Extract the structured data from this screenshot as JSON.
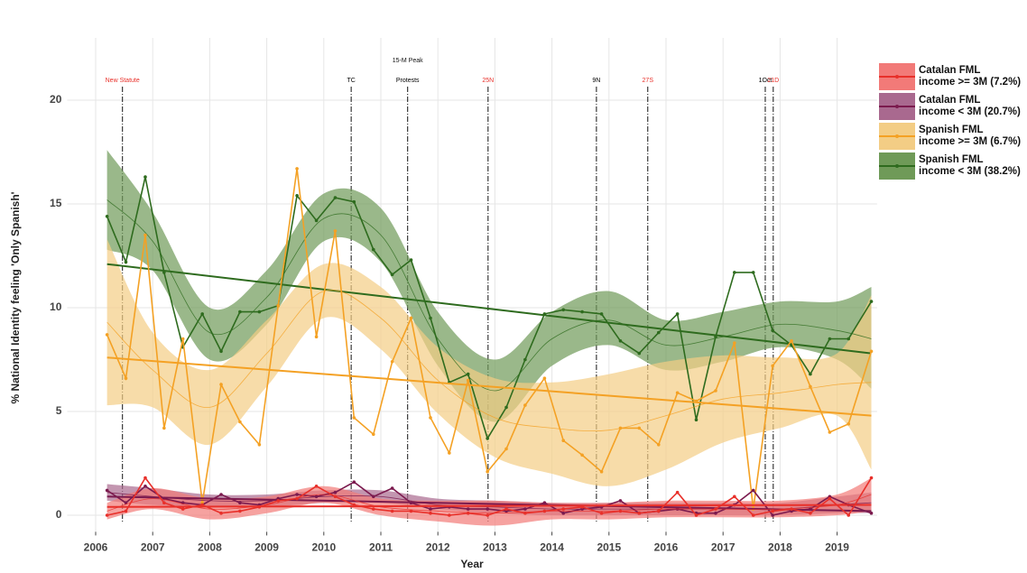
{
  "chart_data": {
    "type": "line",
    "xlabel": "Year",
    "ylabel": "% National Identity feeling 'Only Spanish'",
    "xlim": [
      2005.5,
      2019.7
    ],
    "ylim": [
      -0.8,
      23
    ],
    "xticks": [
      2006,
      2007,
      2008,
      2009,
      2010,
      2011,
      2012,
      2013,
      2014,
      2015,
      2016,
      2017,
      2018,
      2019
    ],
    "yticks": [
      0,
      5,
      10,
      15,
      20
    ],
    "grid": true,
    "legend": "right",
    "x": [
      2006.2,
      2006.53,
      2006.87,
      2007.2,
      2007.53,
      2007.87,
      2008.2,
      2008.53,
      2008.87,
      2009.2,
      2009.53,
      2009.87,
      2010.2,
      2010.53,
      2010.87,
      2011.2,
      2011.53,
      2011.87,
      2012.2,
      2012.53,
      2012.87,
      2013.2,
      2013.53,
      2013.87,
      2014.2,
      2014.53,
      2014.87,
      2015.2,
      2015.53,
      2015.87,
      2016.2,
      2016.53,
      2016.87,
      2017.2,
      2017.53,
      2017.87,
      2018.2,
      2018.53,
      2018.87,
      2019.2,
      2019.6
    ],
    "smooth_x": [
      2006.2,
      2007,
      2008,
      2009,
      2010,
      2011,
      2012,
      2013,
      2014,
      2015,
      2016,
      2017,
      2018,
      2019,
      2019.6
    ],
    "trend_x": [
      2006.2,
      2019.6
    ],
    "series": [
      {
        "name": "Spanish FML\n income < 3M (38.2%)",
        "color": "#2e6b1e",
        "band_color": "#6f9a58",
        "values": [
          14.4,
          12.2,
          16.3,
          11.7,
          8.1,
          9.7,
          7.9,
          9.8,
          9.8,
          10.1,
          15.4,
          14.2,
          15.3,
          15.1,
          12.8,
          11.6,
          12.3,
          9.5,
          6.4,
          6.8,
          3.7,
          5.2,
          7.5,
          9.7,
          9.9,
          9.8,
          9.7,
          8.4,
          7.8,
          8.8,
          9.7,
          4.6,
          8.6,
          11.7,
          11.7,
          8.9,
          8.2,
          6.8,
          8.5,
          8.5,
          10.3
        ],
        "smooth": [
          15.2,
          13.2,
          8.8,
          10.5,
          14.3,
          13.5,
          8.5,
          6.0,
          8.5,
          9.4,
          8.2,
          8.6,
          9.2,
          8.9,
          8.5
        ],
        "band_lower": [
          12.8,
          11.8,
          7.5,
          9.2,
          13.2,
          12.2,
          7.2,
          4.5,
          7.2,
          8.2,
          7.0,
          7.4,
          8.1,
          7.5,
          6.1
        ],
        "band_upper": [
          17.6,
          14.6,
          10.0,
          11.8,
          15.5,
          14.8,
          9.8,
          7.5,
          9.8,
          10.8,
          9.4,
          9.8,
          10.3,
          10.3,
          11.0
        ],
        "trend": [
          12.1,
          7.8
        ]
      },
      {
        "name": "Spanish FML\n income >= 3M (6.7%)",
        "color": "#f4a124",
        "band_color": "#f3cd85",
        "values": [
          8.7,
          6.6,
          13.5,
          4.2,
          8.5,
          0.6,
          6.3,
          4.5,
          3.4,
          10.1,
          16.7,
          8.6,
          13.7,
          4.7,
          3.9,
          7.4,
          9.5,
          4.7,
          3.0,
          6.5,
          2.1,
          3.2,
          5.3,
          6.6,
          3.6,
          2.9,
          2.1,
          4.2,
          4.2,
          3.4,
          5.9,
          5.5,
          6.0,
          8.3,
          0.3,
          7.2,
          8.4,
          6.2,
          4.0,
          4.4,
          7.9
        ],
        "smooth": [
          9.3,
          7.0,
          5.2,
          7.8,
          10.8,
          9.5,
          6.5,
          4.7,
          4.2,
          4.1,
          4.8,
          5.6,
          5.9,
          6.3,
          6.4
        ],
        "band_lower": [
          5.3,
          5.2,
          3.4,
          6.2,
          9.5,
          8.0,
          4.9,
          2.8,
          2.0,
          1.4,
          2.2,
          3.5,
          4.2,
          4.8,
          2.2
        ],
        "band_upper": [
          13.3,
          8.8,
          7.0,
          9.4,
          12.1,
          11.0,
          8.1,
          6.6,
          6.4,
          6.8,
          7.4,
          7.7,
          7.6,
          7.8,
          10.6
        ],
        "trend": [
          7.6,
          4.8
        ]
      },
      {
        "name": "Catalan FML\n income < 3M (20.7%)",
        "color": "#7b1a4e",
        "band_color": "#a9698f",
        "values": [
          1.2,
          0.6,
          1.4,
          0.8,
          0.6,
          0.5,
          1.0,
          0.6,
          0.5,
          0.8,
          1.0,
          0.9,
          1.1,
          1.6,
          0.9,
          1.3,
          0.6,
          0.3,
          0.4,
          0.3,
          0.3,
          0.2,
          0.3,
          0.6,
          0.1,
          0.3,
          0.4,
          0.7,
          0.1,
          0.2,
          0.3,
          0.1,
          0.1,
          0.5,
          1.2,
          0.0,
          0.2,
          0.3,
          0.9,
          0.5,
          0.1
        ],
        "smooth": [
          1.1,
          0.9,
          0.7,
          0.7,
          0.9,
          0.9,
          0.5,
          0.4,
          0.3,
          0.3,
          0.3,
          0.3,
          0.3,
          0.5,
          0.6
        ],
        "band_lower": [
          0.7,
          0.5,
          0.4,
          0.4,
          0.6,
          0.6,
          0.3,
          0.1,
          0.0,
          0.0,
          0.0,
          0.0,
          0.0,
          0.1,
          0.1
        ],
        "band_upper": [
          1.5,
          1.3,
          1.0,
          1.0,
          1.2,
          1.2,
          0.8,
          0.7,
          0.6,
          0.6,
          0.6,
          0.6,
          0.6,
          0.9,
          1.1
        ],
        "trend": [
          0.9,
          0.2
        ]
      },
      {
        "name": "Catalan FML\n income >= 3M (7.2%)",
        "color": "#e8302a",
        "band_color": "#f27a78",
        "values": [
          0.0,
          0.2,
          1.8,
          0.6,
          0.3,
          0.5,
          0.1,
          0.2,
          0.4,
          0.7,
          0.8,
          1.4,
          0.9,
          0.5,
          0.3,
          0.2,
          0.2,
          0.1,
          0.0,
          0.1,
          0.0,
          0.3,
          0.1,
          0.2,
          0.3,
          0.4,
          0.1,
          0.2,
          0.1,
          0.2,
          1.1,
          0.0,
          0.3,
          0.9,
          0.0,
          0.2,
          0.3,
          0.1,
          0.8,
          0.0,
          1.8
        ],
        "smooth": [
          0.2,
          0.8,
          0.3,
          0.5,
          1.0,
          0.4,
          0.2,
          0.1,
          0.2,
          0.2,
          0.3,
          0.3,
          0.3,
          0.5,
          1.0
        ],
        "band_lower": [
          -0.2,
          0.3,
          -0.2,
          0.1,
          0.6,
          0.0,
          -0.3,
          -0.5,
          -0.2,
          -0.2,
          -0.1,
          -0.1,
          -0.1,
          0.0,
          0.2
        ],
        "band_upper": [
          0.6,
          1.3,
          0.8,
          0.9,
          1.4,
          0.8,
          0.7,
          0.7,
          0.6,
          0.6,
          0.7,
          0.7,
          0.7,
          1.0,
          1.8
        ],
        "trend": [
          0.4,
          0.5
        ]
      }
    ],
    "events": [
      {
        "label": "New Statute",
        "x": 2006.47,
        "color": "#e8302a"
      },
      {
        "label": "TC",
        "x": 2010.48,
        "color": "#000000"
      },
      {
        "label": "Protests",
        "x": 2011.47,
        "color": "#000000"
      },
      {
        "label": "25N",
        "x": 2012.88,
        "color": "#e8302a"
      },
      {
        "label": "9N",
        "x": 2014.78,
        "color": "#000000"
      },
      {
        "label": "27S",
        "x": 2015.68,
        "color": "#e8302a"
      },
      {
        "label": "1Oct",
        "x": 2017.74,
        "color": "#000000"
      },
      {
        "label": "21D",
        "x": 2017.88,
        "color": "#e8302a"
      }
    ],
    "annotations": [
      {
        "text": "15-M Peak",
        "x": 2011.47
      }
    ]
  }
}
